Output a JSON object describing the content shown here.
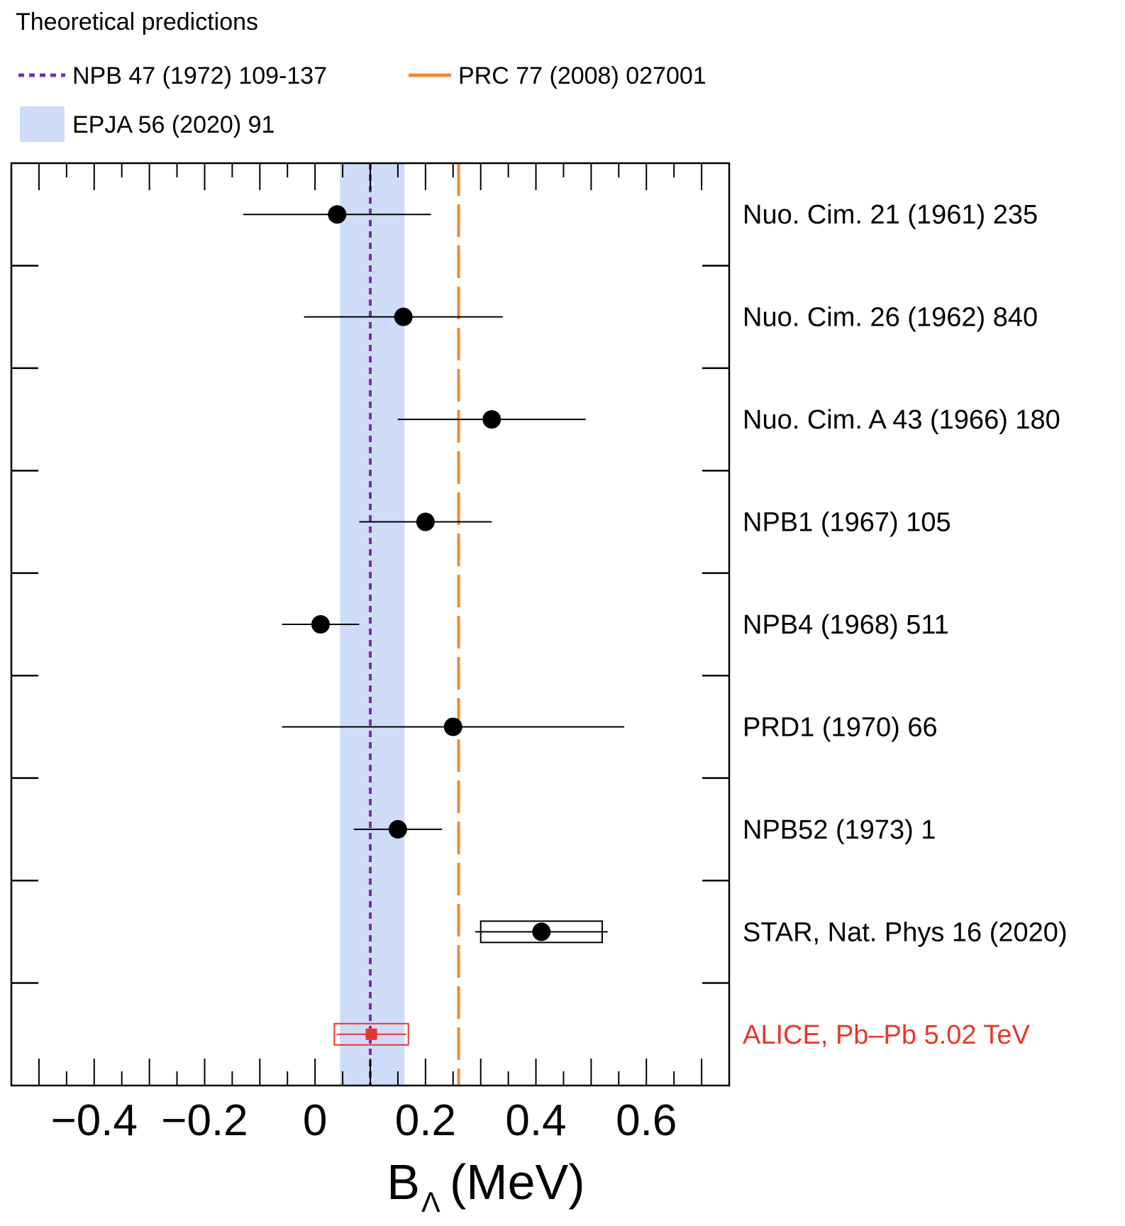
{
  "legend": {
    "heading": "Theoretical predictions",
    "items": [
      {
        "label": "NPB 47 (1972) 109-137",
        "style": "dotted-line",
        "color": "#7b2fb0"
      },
      {
        "label": "PRC 77 (2008) 027001",
        "style": "dashed-line",
        "color": "#ee8a36"
      },
      {
        "label": "EPJA 56 (2020) 91",
        "style": "band",
        "color": "#cfdcf8"
      }
    ]
  },
  "chart_data": {
    "type": "scatter",
    "title": "",
    "xlabel_main": "B",
    "xlabel_sub": "Λ",
    "xlabel_unit": "(MeV)",
    "xlim": [
      -0.55,
      0.75
    ],
    "xticks": [
      {
        "value": -0.4,
        "label": "−0.4"
      },
      {
        "value": -0.2,
        "label": "−0.2"
      },
      {
        "value": 0.0,
        "label": "0"
      },
      {
        "value": 0.2,
        "label": "0.2"
      },
      {
        "value": 0.4,
        "label": "0.4"
      },
      {
        "value": 0.6,
        "label": "0.6"
      }
    ],
    "theory": {
      "npb47_value": 0.1,
      "prc77_value": 0.26,
      "epja56_band": [
        0.045,
        0.162
      ]
    },
    "measurements": [
      {
        "label": "Nuo. Cim. 21 (1961) 235",
        "value": 0.04,
        "err_low": 0.17,
        "err_high": 0.17,
        "color": "#000000",
        "marker": "circle"
      },
      {
        "label": "Nuo. Cim. 26 (1962) 840",
        "value": 0.16,
        "err_low": 0.18,
        "err_high": 0.18,
        "color": "#000000",
        "marker": "circle"
      },
      {
        "label": "Nuo. Cim. A 43 (1966) 180",
        "value": 0.32,
        "err_low": 0.17,
        "err_high": 0.17,
        "color": "#000000",
        "marker": "circle"
      },
      {
        "label": "NPB1 (1967) 105",
        "value": 0.2,
        "err_low": 0.12,
        "err_high": 0.12,
        "color": "#000000",
        "marker": "circle"
      },
      {
        "label": "NPB4 (1968) 511",
        "value": 0.01,
        "err_low": 0.07,
        "err_high": 0.07,
        "color": "#000000",
        "marker": "circle"
      },
      {
        "label": "PRD1 (1970) 66",
        "value": 0.25,
        "err_low": 0.31,
        "err_high": 0.31,
        "color": "#000000",
        "marker": "circle"
      },
      {
        "label": "NPB52 (1973) 1",
        "value": 0.15,
        "err_low": 0.08,
        "err_high": 0.08,
        "color": "#000000",
        "marker": "circle"
      },
      {
        "label": "STAR, Nat. Phys 16 (2020)",
        "value": 0.41,
        "err_low": 0.12,
        "err_high": 0.12,
        "syst_low": 0.11,
        "syst_high": 0.11,
        "color": "#000000",
        "marker": "circle"
      },
      {
        "label": "ALICE, Pb–Pb 5.02 TeV",
        "value": 0.102,
        "err_low": 0.063,
        "err_high": 0.063,
        "syst_low": 0.067,
        "syst_high": 0.067,
        "color": "#e8372c",
        "marker": "square"
      }
    ]
  }
}
